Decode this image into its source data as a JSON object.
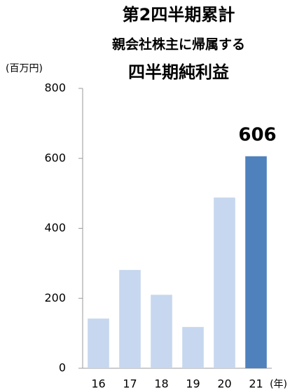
{
  "chart_data": {
    "type": "bar",
    "title": [
      "第2四半期累計",
      "親会社株主に帰属する",
      "四半期純利益"
    ],
    "y_unit": "(百万円)",
    "x_unit": "(年)",
    "categories": [
      "16",
      "17",
      "18",
      "19",
      "20",
      "21"
    ],
    "values": [
      142,
      281,
      210,
      118,
      488,
      606
    ],
    "value_labels": [
      null,
      null,
      null,
      null,
      null,
      "606"
    ],
    "colors": [
      "#c6d7ef",
      "#c6d7ef",
      "#c6d7ef",
      "#c6d7ef",
      "#c6d7ef",
      "#4f81bd"
    ],
    "ylim": [
      0,
      800
    ],
    "yticks": [
      0,
      200,
      400,
      600,
      800
    ],
    "grid": false
  }
}
